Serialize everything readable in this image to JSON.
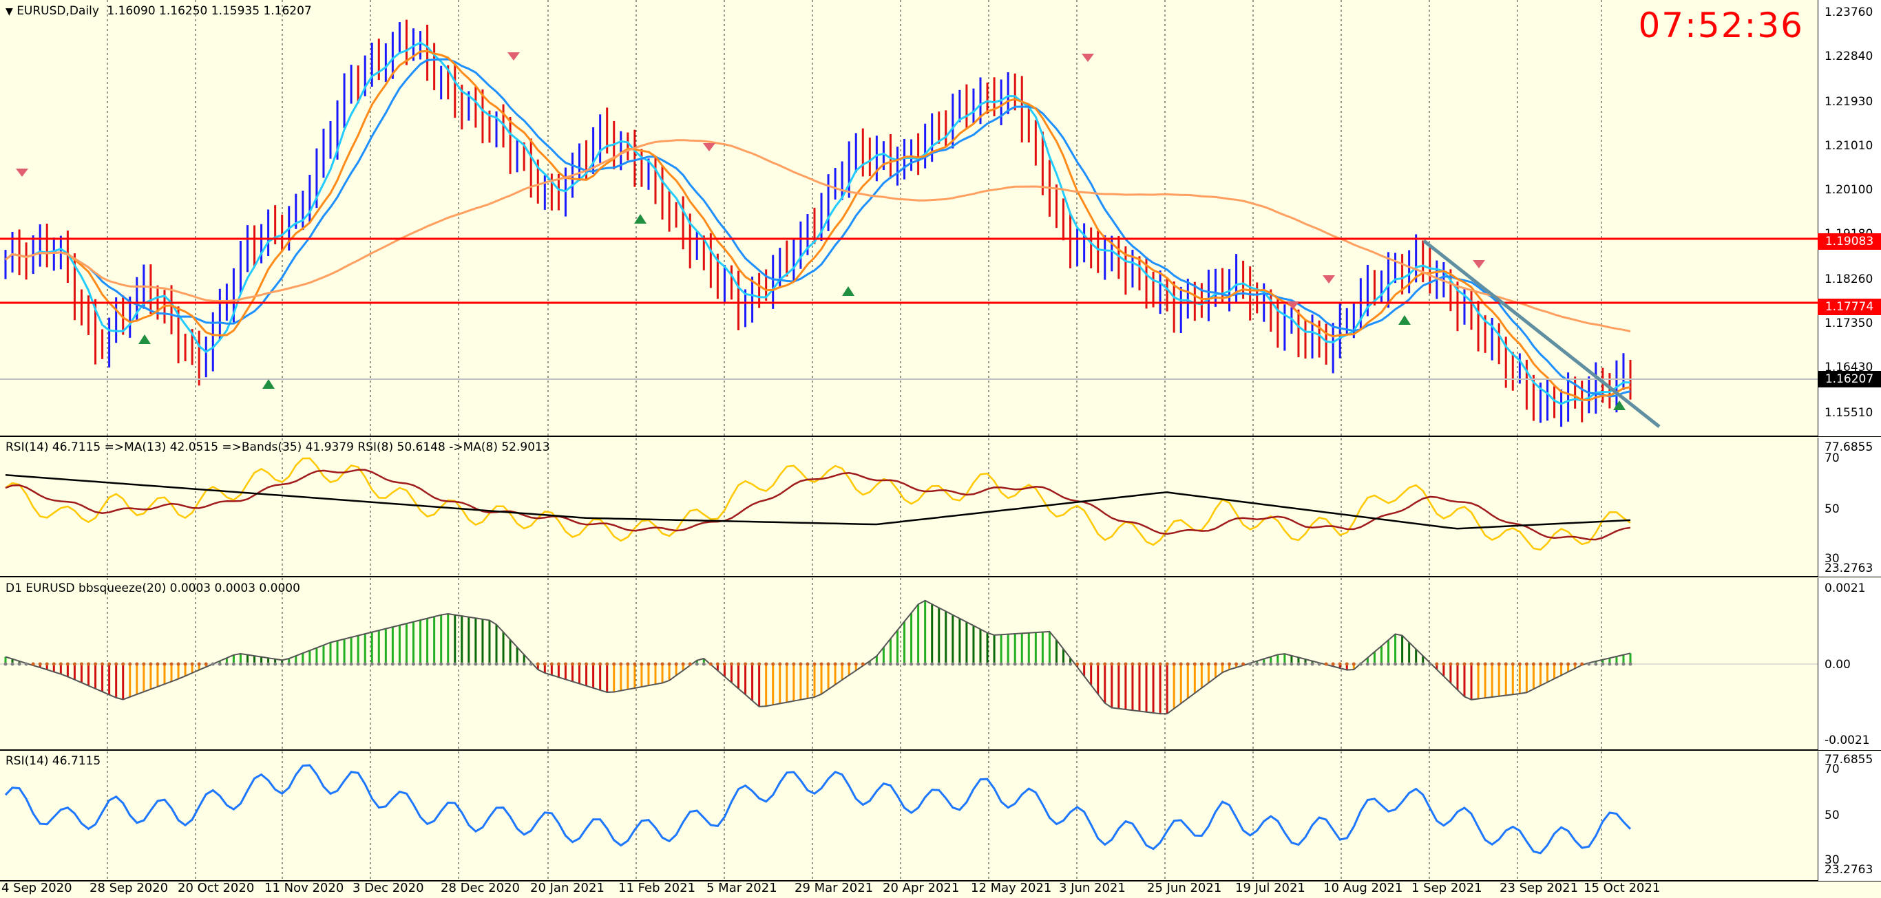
{
  "header": {
    "menu_icon": "triangle-down-icon",
    "symbol": "EURUSD,Daily",
    "ohlc": "1.16090 1.16250 1.15935 1.16207",
    "clock": "07:52:36"
  },
  "price_axis": {
    "ticks": [
      "1.23760",
      "1.22840",
      "1.21930",
      "1.21010",
      "1.20100",
      "1.19180",
      "1.18260",
      "1.17350",
      "1.16430",
      "1.15510"
    ],
    "level_1": "1.19083",
    "level_2": "1.17774",
    "current": "1.16207"
  },
  "rsi_pane": {
    "title": "RSI(14) 46.7115   =>MA(13) 42.0515   =>Bands(35) 41.9379  RSI(8) 50.6148   ->MA(8) 52.9013",
    "ticks": [
      "77.6855",
      "70",
      "50",
      "30",
      "23.2763"
    ]
  },
  "squeeze_pane": {
    "title": "D1 EURUSD bbsqueeze(20) 0.0003 0.0003 0.0000",
    "ticks": [
      "0.0021",
      "0.00",
      "-0.0021"
    ]
  },
  "rsi2_pane": {
    "title": "RSI(14) 46.7115",
    "ticks": [
      "77.6855",
      "70",
      "50",
      "30",
      "23.2763"
    ]
  },
  "dates": [
    "4 Sep 2020",
    "28 Sep 2020",
    "20 Oct 2020",
    "11 Nov 2020",
    "3 Dec 2020",
    "28 Dec 2020",
    "20 Jan 2021",
    "11 Feb 2021",
    "5 Mar 2021",
    "29 Mar 2021",
    "20 Apr 2021",
    "12 May 2021",
    "3 Jun 2021",
    "25 Jun 2021",
    "19 Jul 2021",
    "10 Aug 2021",
    "1 Sep 2021",
    "23 Sep 2021",
    "15 Oct 2021"
  ],
  "colors": {
    "background": "#ffffe6",
    "bull_bar": "#1a1aff",
    "bear_bar": "#e01010",
    "hline": "#ff0000",
    "ma_fast": "#22ccff",
    "ma_mid": "#1e90ff",
    "ma_slow": "#ffa060",
    "ma_orange": "#ff8c1a",
    "trendline": "#5f8fa0",
    "rsi_yellow": "#ffc800",
    "rsi_maroon": "#a01c1c",
    "rsi_black": "#000000",
    "squeeze_green": "#22b022",
    "squeeze_red": "#d01010",
    "squeeze_orange": "#ff9900",
    "rsi2_line": "#1e78ff"
  }
}
